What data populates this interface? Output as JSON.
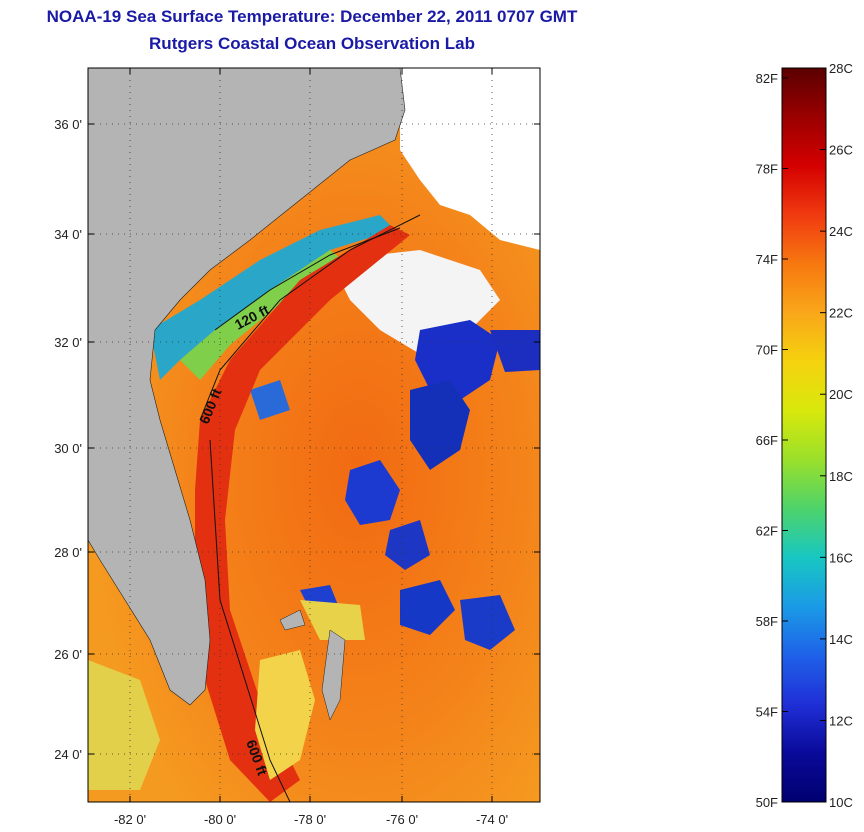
{
  "header": {
    "title": "NOAA-19 Sea Surface Temperature:  December 22, 2011 0707 GMT",
    "subtitle": "Rutgers Coastal Ocean Observation Lab"
  },
  "map": {
    "y_ticks": [
      "36 0'",
      "34 0'",
      "32 0'",
      "30 0'",
      "28 0'",
      "26 0'",
      "24 0'"
    ],
    "x_ticks": [
      "-82 0'",
      "-80 0'",
      "-78 0'",
      "-76 0'",
      "-74 0'"
    ],
    "contour_labels": [
      "120 ft",
      "600 ft",
      "600 ft"
    ]
  },
  "colorbar": {
    "fahrenheit": [
      "82F",
      "78F",
      "74F",
      "70F",
      "66F",
      "62F",
      "58F",
      "54F",
      "50F"
    ],
    "celsius": [
      "28C",
      "26C",
      "24C",
      "22C",
      "20C",
      "18C",
      "16C",
      "14C",
      "12C",
      "10C"
    ],
    "stops": [
      "#5a0000",
      "#9b0000",
      "#d40000",
      "#f03a10",
      "#f7780f",
      "#f9a71a",
      "#f5d20e",
      "#d8e80c",
      "#9be02a",
      "#4ed36a",
      "#18c7c2",
      "#1a9be6",
      "#1f62e8",
      "#1f2fd6",
      "#0a0a9a",
      "#000070"
    ]
  },
  "colors": {
    "title": "#1a1aa6",
    "land": "#b4b4b4",
    "cloud": "#ffffff",
    "warm": "#f05a14",
    "cold": "#1030c8"
  }
}
